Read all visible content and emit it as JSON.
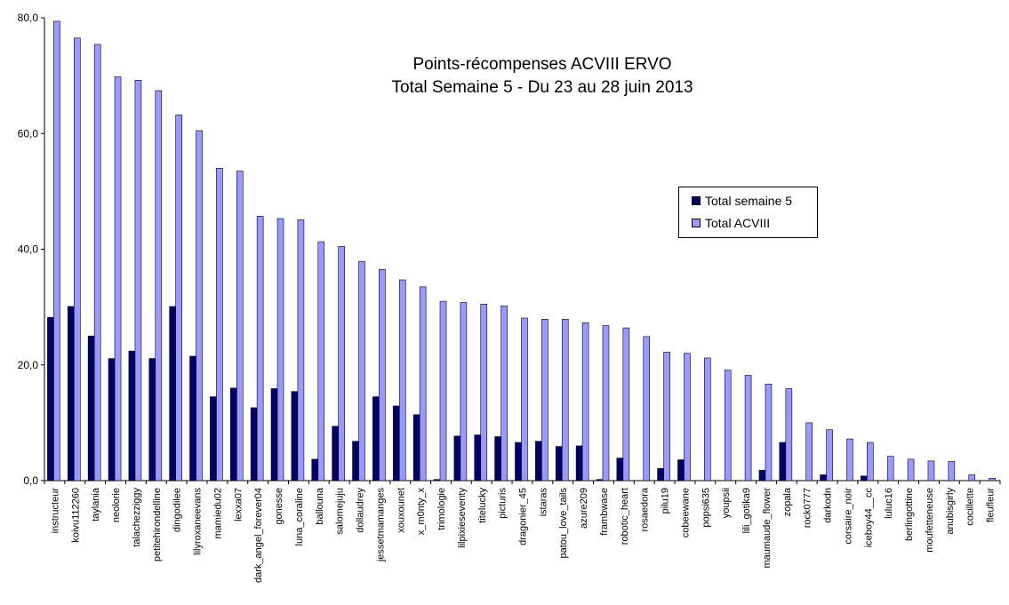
{
  "chart_data": {
    "type": "bar",
    "title": "Points-récompenses ACVIII ERVO",
    "subtitle": "Total Semaine 5 - Du 23 au 28 juin 2013",
    "xlabel": "",
    "ylabel": "",
    "ylim": [
      0,
      80
    ],
    "yticks": [
      "0,0",
      "20,0",
      "40,0",
      "60,0",
      "80,0"
    ],
    "ytick_values": [
      0,
      20,
      40,
      60,
      80
    ],
    "grid": false,
    "legend_position": "right",
    "categories": [
      "instructeur",
      "koivu112260",
      "taylania",
      "neolorie",
      "talachezziggy",
      "petitehirondelline",
      "dingodilee",
      "lilyroxaneevans",
      "mamiedu02",
      "lexxa07",
      "dark_angel_forever04",
      "gonesse",
      "luna_coraline",
      "ballouna",
      "salomejuju",
      "dollaudrey",
      "jessetmamanges",
      "xouxounet",
      "x_m0nty_x",
      "trimologie",
      "lilpixieseventy",
      "titelucky",
      "picturis",
      "dragonier_45",
      "istaras",
      "patou_love_tails",
      "azure209",
      "frambwase",
      "robotic_heart",
      "rosaedora",
      "pilu19",
      "cobeewane",
      "popsi635",
      "youpsii",
      "lili_gotika9",
      "maumaude_flower",
      "zopala",
      "rock0777",
      "darkodn",
      "corsaire_noir",
      "iceboy44__cc",
      "luluc16",
      "berlingottine",
      "moufetteneuse",
      "anubisgirly",
      "cocillette",
      "fleufleur"
    ],
    "series": [
      {
        "name": "Total semaine 5",
        "color": "#000066",
        "values": [
          28.2,
          30.1,
          25.0,
          21.1,
          22.4,
          21.1,
          30.1,
          21.5,
          14.5,
          16.0,
          12.6,
          15.9,
          15.4,
          3.7,
          9.4,
          6.8,
          14.5,
          12.9,
          11.4,
          0.2,
          7.7,
          7.9,
          7.6,
          6.6,
          6.8,
          5.9,
          6.0,
          0.2,
          3.9,
          0,
          2.1,
          3.6,
          0,
          0,
          0,
          1.8,
          6.6,
          0,
          1.0,
          0,
          0.8,
          0,
          0,
          0,
          0,
          0,
          0
        ]
      },
      {
        "name": "Total ACVIII",
        "color": "#9999ff",
        "values": [
          79.4,
          76.5,
          75.4,
          69.8,
          69.2,
          67.4,
          63.2,
          60.5,
          54.0,
          53.5,
          45.7,
          45.3,
          45.1,
          41.3,
          40.5,
          37.9,
          36.5,
          34.7,
          33.5,
          31.0,
          30.8,
          30.5,
          30.2,
          28.1,
          27.9,
          27.9,
          27.3,
          26.8,
          26.4,
          24.9,
          22.2,
          22.0,
          21.2,
          19.1,
          18.2,
          16.7,
          15.9,
          10.0,
          8.8,
          7.2,
          6.6,
          4.2,
          3.7,
          3.4,
          3.3,
          1.0,
          0.4
        ]
      }
    ]
  }
}
